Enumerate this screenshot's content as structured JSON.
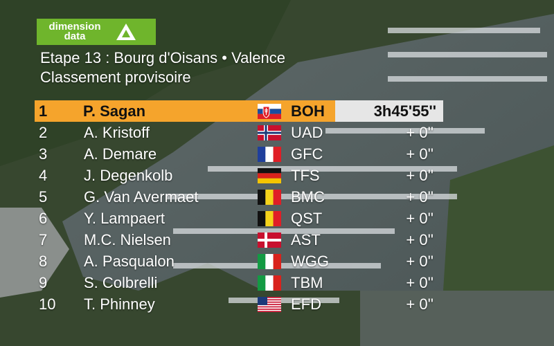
{
  "brand": {
    "logo_text": "dimension data",
    "logo_color": "#6fb52c"
  },
  "title": {
    "stage": "Etape 13 : Bourg d'Oisans • Valence",
    "subtitle": "Classement provisoire"
  },
  "colors": {
    "leader_bar": "#f5a42c",
    "time_box": "#e6e6e6"
  },
  "standings": [
    {
      "pos": "1",
      "name": "P. Sagan",
      "flag": "slovakia-flag",
      "team": "BOH",
      "time": "3h45'55''"
    },
    {
      "pos": "2",
      "name": "A. Kristoff",
      "flag": "norway-flag",
      "team": "UAD",
      "time": "+ 0''"
    },
    {
      "pos": "3",
      "name": "A. Demare",
      "flag": "france-flag",
      "team": "GFC",
      "time": "+ 0''"
    },
    {
      "pos": "4",
      "name": "J. Degenkolb",
      "flag": "germany-flag",
      "team": "TFS",
      "time": "+ 0''"
    },
    {
      "pos": "5",
      "name": "G. Van Avermaet",
      "flag": "belgium-flag",
      "team": "BMC",
      "time": "+ 0''"
    },
    {
      "pos": "6",
      "name": "Y. Lampaert",
      "flag": "belgium-flag",
      "team": "QST",
      "time": "+ 0''"
    },
    {
      "pos": "7",
      "name": "M.C. Nielsen",
      "flag": "denmark-flag",
      "team": "AST",
      "time": "+ 0''"
    },
    {
      "pos": "8",
      "name": "A. Pasqualon",
      "flag": "italy-flag",
      "team": "WGG",
      "time": "+ 0''"
    },
    {
      "pos": "9",
      "name": "S. Colbrelli",
      "flag": "italy-flag",
      "team": "TBM",
      "time": "+ 0''"
    },
    {
      "pos": "10",
      "name": "T. Phinney",
      "flag": "usa-flag",
      "team": "EFD",
      "time": "+ 0''"
    }
  ]
}
